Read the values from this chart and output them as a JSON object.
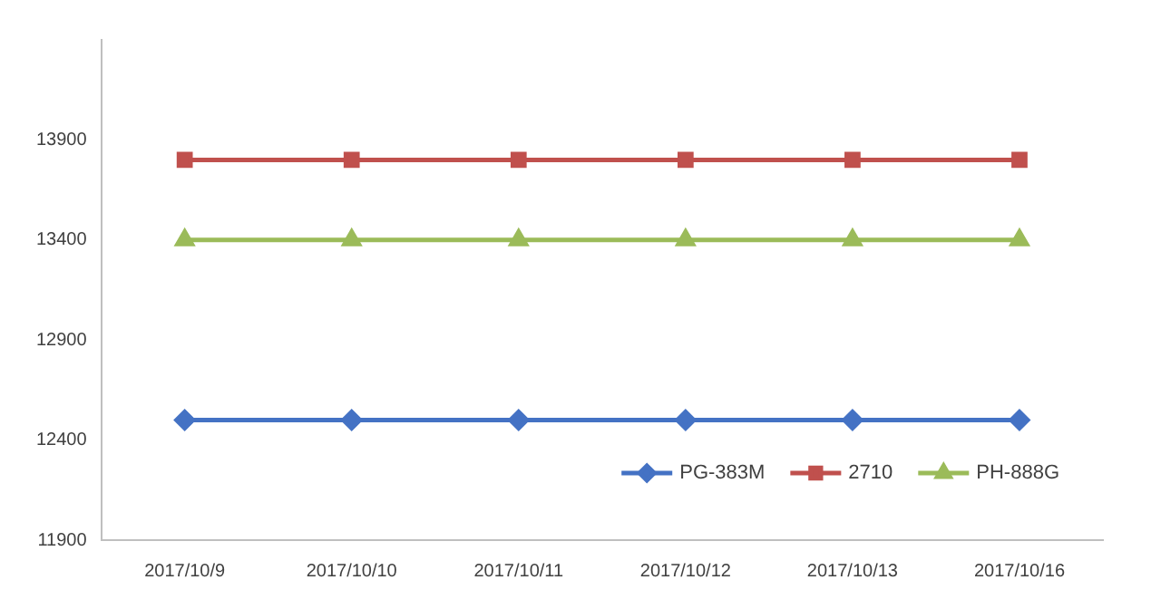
{
  "chart_data": {
    "type": "line",
    "categories": [
      "2017/10/9",
      "2017/10/10",
      "2017/10/11",
      "2017/10/12",
      "2017/10/13",
      "2017/10/16"
    ],
    "series": [
      {
        "name": "PG-383M",
        "color": "#4472c4",
        "marker": "diamond",
        "values": [
          12500,
          12500,
          12500,
          12500,
          12500,
          12500
        ]
      },
      {
        "name": "2710",
        "color": "#c0504d",
        "marker": "square",
        "values": [
          13800,
          13800,
          13800,
          13800,
          13800,
          13800
        ]
      },
      {
        "name": "PH-888G",
        "color": "#9bbb59",
        "marker": "triangle",
        "values": [
          13400,
          13400,
          13400,
          13400,
          13400,
          13400
        ]
      }
    ],
    "ylim": [
      11900,
      14400
    ],
    "yticks": [
      11900,
      12400,
      12900,
      13400,
      13900
    ],
    "grid": false,
    "legend": "bottom right",
    "line_style": "solid"
  }
}
